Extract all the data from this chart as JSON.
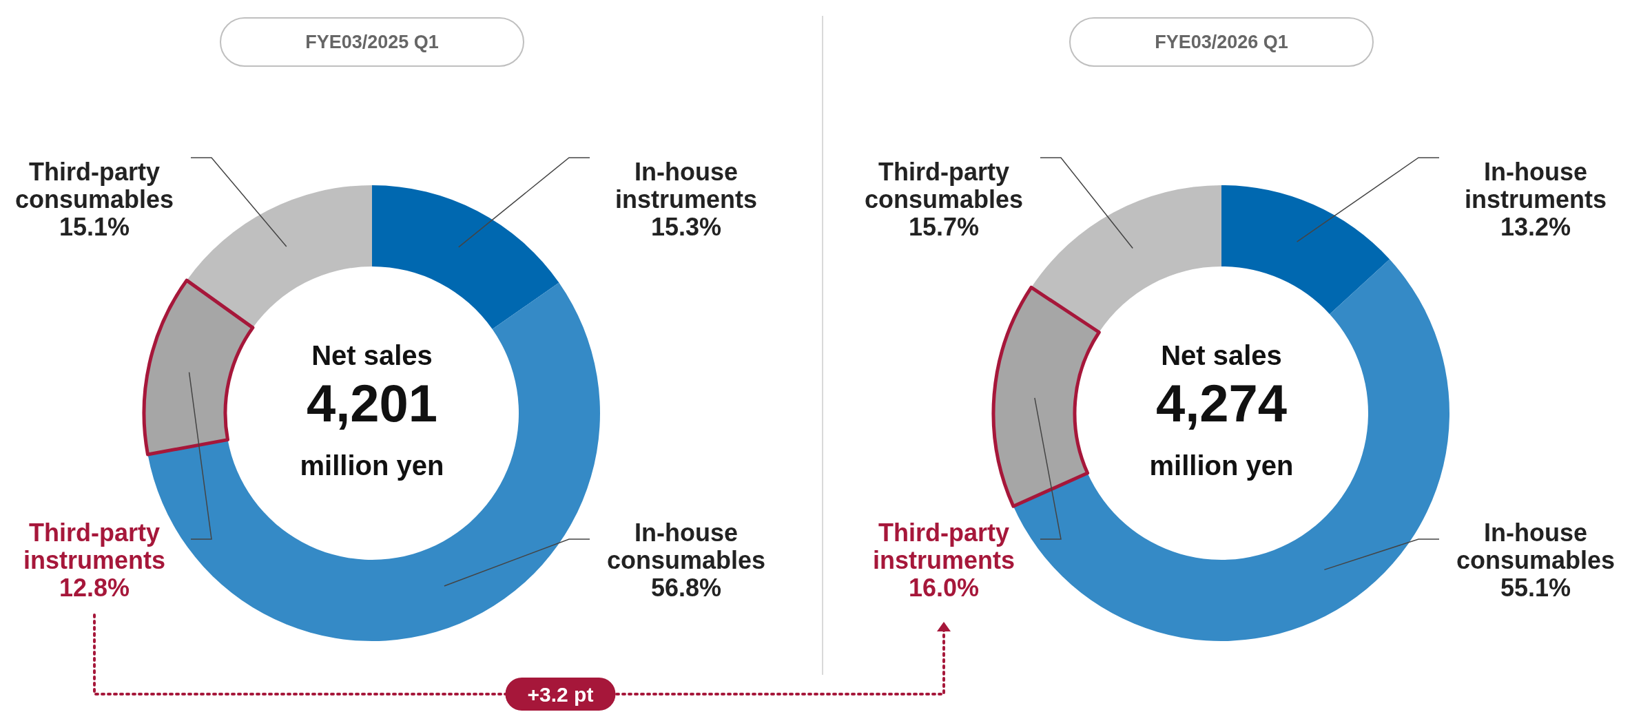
{
  "chart_data": [
    {
      "type": "donut",
      "title": "FYE03/2025 Q1",
      "categories": [
        "In-house instruments",
        "In-house consumables",
        "Third-party instruments",
        "Third-party consumables"
      ],
      "values": [
        15.3,
        56.8,
        12.8,
        15.1
      ],
      "value_labels": [
        "15.3%",
        "56.8%",
        "12.8%",
        "15.1%"
      ],
      "colors": [
        "#0068b0",
        "#358ac6",
        "#a6a6a6",
        "#bfbfbf"
      ],
      "annotations": [
        "Net sales",
        "4,201",
        "million yen"
      ]
    },
    {
      "type": "donut",
      "title": "FYE03/2026 Q1",
      "categories": [
        "In-house instruments",
        "In-house consumables",
        "Third-party instruments",
        "Third-party consumables"
      ],
      "values": [
        13.2,
        55.1,
        16.0,
        15.7
      ],
      "value_labels": [
        "13.2%",
        "55.1%",
        "16.0%",
        "15.7%"
      ],
      "colors": [
        "#0068b0",
        "#358ac6",
        "#a6a6a6",
        "#bfbfbf"
      ],
      "annotations": [
        "Net sales",
        "4,274",
        "million yen",
        {
          "text": "+3.2 pt",
          "x": "Third-party instruments"
        }
      ]
    }
  ]
}
